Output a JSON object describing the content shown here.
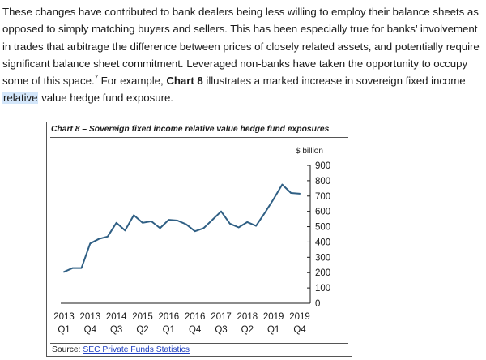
{
  "paragraph": {
    "part1": "These changes have contributed to bank dealers being less willing to employ their balance sheets as opposed to simply matching buyers and sellers. This has been especially true for banks’ involvement in trades that arbitrage the difference between prices of closely related assets, and potentially require significant balance sheet commitment. Leveraged non-banks have taken the opportunity to occupy some of this space.",
    "footnote": "7",
    "part2": " For example, ",
    "bold": "Chart 8",
    "part3": " illustrates a marked increase in sovereign fixed income ",
    "highlight": "relative",
    "part4": " value hedge fund exposure."
  },
  "chart_box": {
    "title": "Chart 8 – Sovereign fixed income relative value hedge fund exposures",
    "source_label": "Source: ",
    "source_link": "SEC Private Funds Statistics"
  },
  "chart_data": {
    "type": "line",
    "title": "Chart 8 – Sovereign fixed income relative value hedge fund exposures",
    "unit_label": "$ billion",
    "ylim": [
      0,
      900
    ],
    "yticks": [
      0,
      100,
      200,
      300,
      400,
      500,
      600,
      700,
      800,
      900
    ],
    "y_axis_position": "right",
    "grid": false,
    "legend": "none",
    "line_color": "#2f5f84",
    "x_tick_labels": [
      {
        "year": "2013",
        "quarter": "Q1",
        "index": 0
      },
      {
        "year": "2013",
        "quarter": "Q4",
        "index": 3
      },
      {
        "year": "2014",
        "quarter": "Q3",
        "index": 6
      },
      {
        "year": "2015",
        "quarter": "Q2",
        "index": 9
      },
      {
        "year": "2016",
        "quarter": "Q1",
        "index": 12
      },
      {
        "year": "2016",
        "quarter": "Q4",
        "index": 15
      },
      {
        "year": "2017",
        "quarter": "Q3",
        "index": 18
      },
      {
        "year": "2018",
        "quarter": "Q2",
        "index": 21
      },
      {
        "year": "2019",
        "quarter": "Q1",
        "index": 24
      },
      {
        "year": "2019",
        "quarter": "Q4",
        "index": 27
      }
    ],
    "series": [
      {
        "values": [
          205,
          230,
          230,
          390,
          420,
          435,
          525,
          475,
          575,
          525,
          535,
          490,
          545,
          540,
          515,
          470,
          490,
          545,
          600,
          520,
          495,
          530,
          505,
          590,
          680,
          775,
          720,
          715
        ]
      }
    ]
  }
}
